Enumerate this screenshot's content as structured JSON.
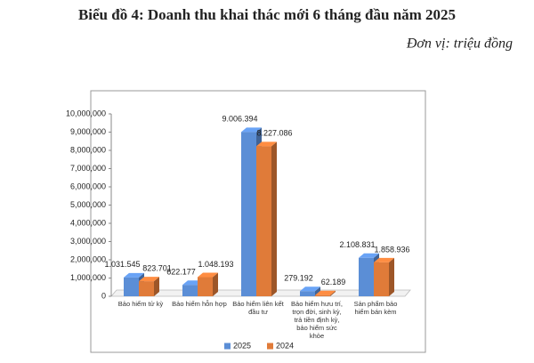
{
  "chart_data": {
    "type": "bar",
    "title": "Biểu đồ 4: Doanh thu khai thác mới 6 tháng đầu năm 2025",
    "subtitle": "Đơn vị: triệu đồng",
    "categories": [
      "Bảo hiểm tử kỳ",
      "Bảo hiểm hỗn hợp",
      "Bảo hiểm liên kết đầu tư",
      "Bảo hiểm hưu trí, trọn đời, sinh kỳ, trả tiền định kỳ, bảo hiểm sức khỏe",
      "Sản phẩm bảo hiểm bán kèm"
    ],
    "series": [
      {
        "name": "2025",
        "color": "#5b8ed6",
        "values": [
          1031545,
          622177,
          9006394,
          279192,
          2108831
        ],
        "value_labels": [
          "1.031.545",
          "622.177",
          "9.006.394",
          "279.192",
          "2.108.831"
        ]
      },
      {
        "name": "2024",
        "color": "#e07b39",
        "values": [
          823701,
          1048193,
          8227086,
          62189,
          1858936
        ],
        "value_labels": [
          "823.701",
          "1.048.193",
          "8.227.086",
          "62.189",
          "1.858.936"
        ]
      }
    ],
    "ylim": [
      0,
      10000000
    ],
    "yticks": [
      0,
      {
        "value": 1000000,
        "label": "1,000,000"
      },
      {
        "value": 2000000,
        "label": "2,000,000"
      },
      {
        "value": 3000000,
        "label": "3,000,000"
      },
      {
        "value": 4000000,
        "label": "4,000,000"
      },
      {
        "value": 5000000,
        "label": "5,000,000"
      },
      {
        "value": 6000000,
        "label": "6,000,000"
      },
      {
        "value": 7000000,
        "label": "7,000,000"
      },
      {
        "value": 8000000,
        "label": "8,000,000"
      },
      {
        "value": 9000000,
        "label": "9,000,000"
      },
      {
        "value": 10000000,
        "label": "10,000,000"
      }
    ],
    "legend": "bottom"
  }
}
